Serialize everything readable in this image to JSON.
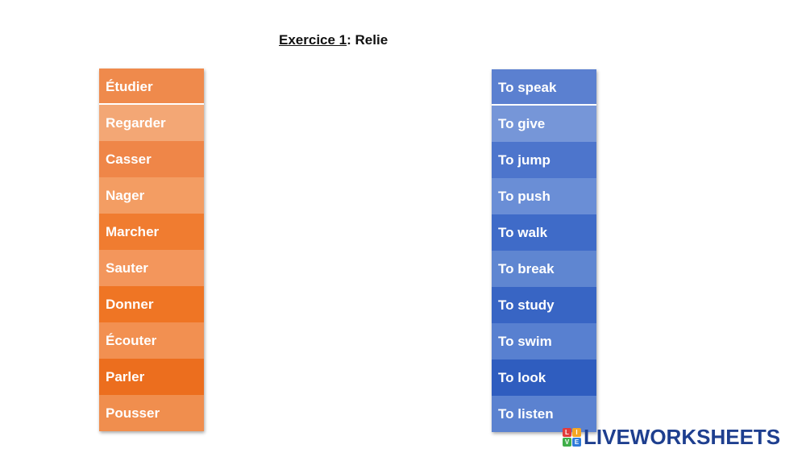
{
  "title": {
    "underlined": "Exercice 1",
    "rest": ": Relie"
  },
  "left_column": {
    "items": [
      "Étudier",
      "Regarder",
      "Casser",
      "Nager",
      "Marcher",
      "Sauter",
      "Donner",
      "Écouter",
      "Parler",
      "Pousser"
    ],
    "colors": [
      "#ef8a4c",
      "#f3a775",
      "#ef8648",
      "#f39d63",
      "#f07c30",
      "#f3965c",
      "#ef7524",
      "#f29051",
      "#ec6e1e",
      "#f08e4e"
    ]
  },
  "right_column": {
    "items": [
      "To speak",
      "To give",
      "To jump",
      "To push",
      "To walk",
      "To break",
      "To study",
      "To swim",
      "To look",
      "To listen"
    ],
    "colors": [
      "#5b80d0",
      "#7696d8",
      "#4d75cc",
      "#6a8ed6",
      "#3f6bc8",
      "#5f86d1",
      "#3865c4",
      "#5880d0",
      "#2f5dbf",
      "#5b82d0"
    ]
  },
  "logo": {
    "mark_letters": [
      "L",
      "I",
      "V",
      "E"
    ],
    "mark_colors": [
      "#e23b3b",
      "#f5a623",
      "#3fae49",
      "#2f7bd9"
    ],
    "text": "LIVEWORKSHEETS"
  }
}
